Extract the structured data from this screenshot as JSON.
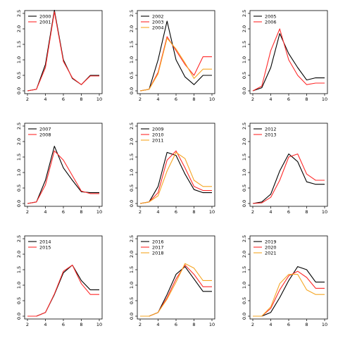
{
  "chart_data": [
    {
      "type": "line",
      "x": [
        2,
        3,
        4,
        5,
        6,
        7,
        8,
        9,
        10
      ],
      "xlim": [
        2,
        10
      ],
      "ylim": [
        0,
        2.5
      ],
      "series": [
        {
          "name": "2000",
          "color": "#000000",
          "values": [
            0,
            0.05,
            0.85,
            2.6,
            1.0,
            0.4,
            0.2,
            0.5,
            0.5
          ]
        },
        {
          "name": "2001",
          "color": "#ff2a2a",
          "values": [
            0,
            0.05,
            0.75,
            2.55,
            0.95,
            0.42,
            0.2,
            0.48,
            0.48
          ]
        }
      ]
    },
    {
      "type": "line",
      "x": [
        2,
        3,
        4,
        5,
        6,
        7,
        8,
        9,
        10
      ],
      "xlim": [
        2,
        10
      ],
      "ylim": [
        0,
        2.5
      ],
      "series": [
        {
          "name": "2002",
          "color": "#000000",
          "values": [
            0,
            0.05,
            1.0,
            2.25,
            1.0,
            0.45,
            0.2,
            0.5,
            0.5
          ]
        },
        {
          "name": "2003",
          "color": "#ff2a2a",
          "values": [
            0,
            0.05,
            0.6,
            1.75,
            1.3,
            0.85,
            0.5,
            1.1,
            1.1
          ]
        },
        {
          "name": "2004",
          "color": "#f5a623",
          "values": [
            0,
            0.05,
            0.55,
            1.7,
            1.35,
            0.9,
            0.4,
            0.7,
            0.7
          ]
        }
      ]
    },
    {
      "type": "line",
      "x": [
        2,
        3,
        4,
        5,
        6,
        7,
        8,
        9,
        10
      ],
      "xlim": [
        2,
        10
      ],
      "ylim": [
        0,
        2.5
      ],
      "series": [
        {
          "name": "2005",
          "color": "#000000",
          "values": [
            0,
            0.1,
            0.75,
            1.85,
            1.2,
            0.75,
            0.35,
            0.42,
            0.42
          ]
        },
        {
          "name": "2006",
          "color": "#ff2a2a",
          "values": [
            0,
            0.15,
            1.3,
            2.0,
            1.0,
            0.5,
            0.2,
            0.25,
            0.25
          ]
        }
      ]
    },
    {
      "type": "line",
      "x": [
        2,
        3,
        4,
        5,
        6,
        7,
        8,
        9,
        10
      ],
      "xlim": [
        2,
        10
      ],
      "ylim": [
        0,
        2.5
      ],
      "series": [
        {
          "name": "2007",
          "color": "#000000",
          "values": [
            0,
            0.05,
            0.75,
            1.85,
            1.15,
            0.75,
            0.38,
            0.35,
            0.35
          ]
        },
        {
          "name": "2008",
          "color": "#ff2a2a",
          "values": [
            0,
            0.05,
            0.6,
            1.7,
            1.4,
            0.9,
            0.4,
            0.32,
            0.32
          ]
        }
      ]
    },
    {
      "type": "line",
      "x": [
        2,
        3,
        4,
        5,
        6,
        7,
        8,
        9,
        10
      ],
      "xlim": [
        2,
        10
      ],
      "ylim": [
        0,
        2.5
      ],
      "series": [
        {
          "name": "2009",
          "color": "#000000",
          "values": [
            0,
            0.05,
            0.55,
            1.65,
            1.55,
            0.95,
            0.45,
            0.35,
            0.35
          ]
        },
        {
          "name": "2010",
          "color": "#ff2a2a",
          "values": [
            0,
            0.05,
            0.35,
            1.4,
            1.7,
            1.15,
            0.55,
            0.42,
            0.42
          ]
        },
        {
          "name": "2011",
          "color": "#f5a623",
          "values": [
            0,
            0.05,
            0.25,
            1.05,
            1.65,
            1.45,
            0.75,
            0.55,
            0.55
          ]
        }
      ]
    },
    {
      "type": "line",
      "x": [
        2,
        3,
        4,
        5,
        6,
        7,
        8,
        9,
        10
      ],
      "xlim": [
        2,
        10
      ],
      "ylim": [
        0,
        2.5
      ],
      "series": [
        {
          "name": "2012",
          "color": "#000000",
          "values": [
            0,
            0.05,
            0.3,
            1.05,
            1.6,
            1.35,
            0.7,
            0.62,
            0.62
          ]
        },
        {
          "name": "2013",
          "color": "#ff2a2a",
          "values": [
            0,
            0.02,
            0.2,
            0.75,
            1.5,
            1.6,
            0.95,
            0.75,
            0.75
          ]
        }
      ]
    },
    {
      "type": "line",
      "x": [
        2,
        3,
        4,
        5,
        6,
        7,
        8,
        9,
        10
      ],
      "xlim": [
        2,
        10
      ],
      "ylim": [
        0,
        2.5
      ],
      "series": [
        {
          "name": "2014",
          "color": "#000000",
          "values": [
            0,
            0.0,
            0.12,
            0.7,
            1.4,
            1.65,
            1.15,
            0.85,
            0.85
          ]
        },
        {
          "name": "2015",
          "color": "#ff2a2a",
          "values": [
            0,
            0.0,
            0.12,
            0.72,
            1.45,
            1.65,
            1.05,
            0.7,
            0.7
          ]
        }
      ]
    },
    {
      "type": "line",
      "x": [
        2,
        3,
        4,
        5,
        6,
        7,
        8,
        9,
        10
      ],
      "xlim": [
        2,
        10
      ],
      "ylim": [
        0,
        2.5
      ],
      "series": [
        {
          "name": "2016",
          "color": "#000000",
          "values": [
            0,
            0.0,
            0.12,
            0.7,
            1.35,
            1.6,
            1.2,
            0.8,
            0.8
          ]
        },
        {
          "name": "2017",
          "color": "#ff2a2a",
          "values": [
            0,
            0.0,
            0.12,
            0.6,
            1.2,
            1.65,
            1.35,
            0.95,
            0.95
          ]
        },
        {
          "name": "2018",
          "color": "#f5a623",
          "values": [
            0,
            0.0,
            0.12,
            0.55,
            1.1,
            1.7,
            1.55,
            1.15,
            1.15
          ]
        }
      ]
    },
    {
      "type": "line",
      "x": [
        2,
        3,
        4,
        5,
        6,
        7,
        8,
        9,
        10
      ],
      "xlim": [
        2,
        10
      ],
      "ylim": [
        0,
        2.5
      ],
      "series": [
        {
          "name": "2019",
          "color": "#000000",
          "values": [
            0,
            0.0,
            0.12,
            0.6,
            1.15,
            1.6,
            1.5,
            1.1,
            1.1
          ]
        },
        {
          "name": "2020",
          "color": "#ff2a2a",
          "values": [
            0,
            0.0,
            0.25,
            0.85,
            1.3,
            1.45,
            1.25,
            0.9,
            0.9
          ]
        },
        {
          "name": "2021",
          "color": "#f5a623",
          "values": [
            0,
            0.0,
            0.3,
            1.05,
            1.35,
            1.35,
            0.85,
            0.7,
            0.7
          ]
        }
      ]
    }
  ],
  "axes": {
    "x_ticks": [
      2,
      4,
      6,
      8,
      10
    ],
    "y_ticks": [
      0,
      0.5,
      1,
      1.5,
      2,
      2.5
    ],
    "x_tick_labels": [
      "2",
      "4",
      "6",
      "8",
      "10"
    ],
    "y_tick_labels": [
      "0.0",
      "0.5",
      "1.0",
      "1.5",
      "2.0",
      "2.5"
    ],
    "grid": false,
    "legend_position": "top-left"
  }
}
